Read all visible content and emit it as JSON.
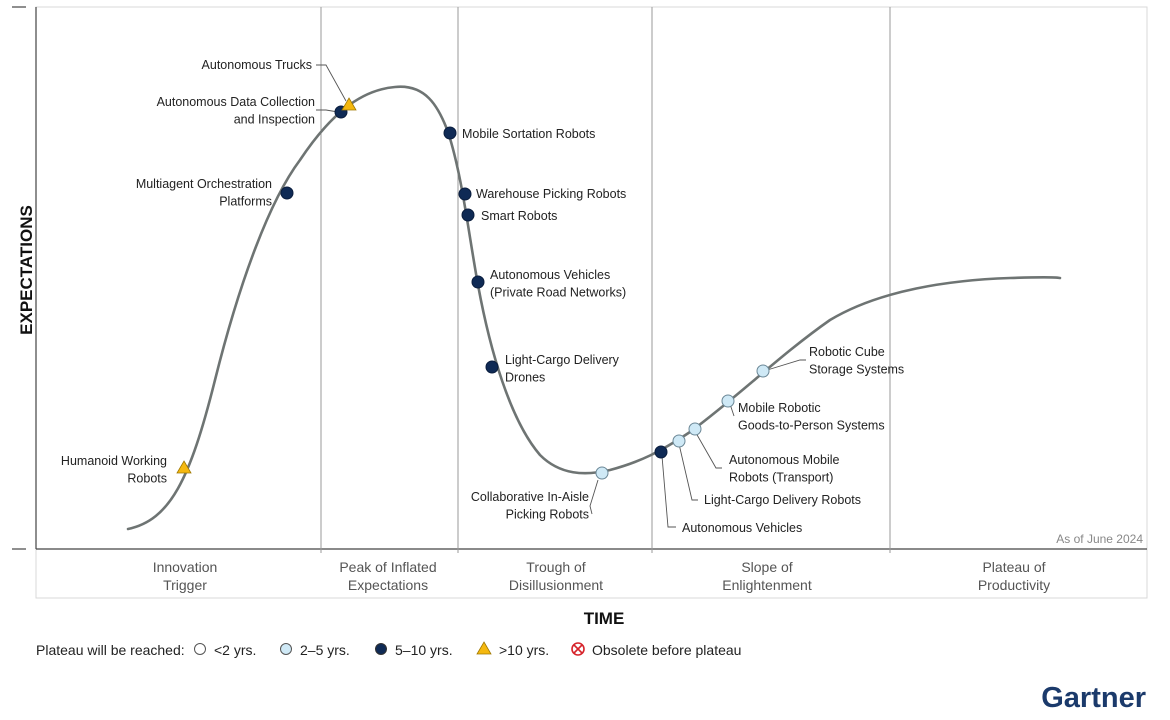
{
  "chart_data": {
    "type": "scatter",
    "chart_kind": "hype-cycle",
    "xlabel": "TIME",
    "ylabel": "EXPECTATIONS",
    "as_of": "As of June 2024",
    "phases": [
      {
        "line1": "Innovation",
        "line2": "Trigger"
      },
      {
        "line1": "Peak of Inflated",
        "line2": "Expectations"
      },
      {
        "line1": "Trough of",
        "line2": "Disillusionment"
      },
      {
        "line1": "Slope of",
        "line2": "Enlightenment"
      },
      {
        "line1": "Plateau of",
        "line2": "Productivity"
      }
    ],
    "legend": {
      "title": "Plateau will be reached:",
      "items": [
        {
          "key": "lt2",
          "label": "<2 yrs."
        },
        {
          "key": "y2to5",
          "label": "2–5 yrs."
        },
        {
          "key": "y5to10",
          "label": "5–10 yrs."
        },
        {
          "key": "gt10",
          "label": ">10 yrs."
        },
        {
          "key": "obsolete",
          "label": "Obsolete before plateau"
        }
      ]
    },
    "colors": {
      "curve": "#6e7473",
      "lt2": "#ffffff",
      "y2to5": "#cfe9f6",
      "y5to10": "#0f2a55",
      "gt10": "#f5b80f",
      "obsolete": "#d6242b",
      "divider": "#9a9a9a"
    },
    "technologies": [
      {
        "name": "Humanoid Working Robots",
        "lines": [
          "Humanoid Working",
          "Robots"
        ],
        "phase": "Innovation Trigger",
        "plateau": "gt10"
      },
      {
        "name": "Multiagent Orchestration Platforms",
        "lines": [
          "Multiagent Orchestration",
          "Platforms"
        ],
        "phase": "Innovation Trigger",
        "plateau": "y5to10"
      },
      {
        "name": "Autonomous Data Collection and Inspection",
        "lines": [
          "Autonomous Data Collection",
          "and Inspection"
        ],
        "phase": "Peak of Inflated Expectations",
        "plateau": "y5to10"
      },
      {
        "name": "Autonomous Trucks",
        "lines": [
          "Autonomous Trucks"
        ],
        "phase": "Peak of Inflated Expectations",
        "plateau": "gt10"
      },
      {
        "name": "Mobile Sortation Robots",
        "lines": [
          "Mobile Sortation Robots"
        ],
        "phase": "Peak of Inflated Expectations",
        "plateau": "y5to10"
      },
      {
        "name": "Warehouse Picking Robots",
        "lines": [
          "Warehouse Picking Robots"
        ],
        "phase": "Trough of Disillusionment",
        "plateau": "y5to10"
      },
      {
        "name": "Smart Robots",
        "lines": [
          "Smart Robots"
        ],
        "phase": "Trough of Disillusionment",
        "plateau": "y5to10"
      },
      {
        "name": "Autonomous Vehicles (Private Road Networks)",
        "lines": [
          "Autonomous Vehicles",
          "(Private Road Networks)"
        ],
        "phase": "Trough of Disillusionment",
        "plateau": "y5to10"
      },
      {
        "name": "Light-Cargo Delivery Drones",
        "lines": [
          "Light-Cargo Delivery",
          "Drones"
        ],
        "phase": "Trough of Disillusionment",
        "plateau": "y5to10"
      },
      {
        "name": "Collaborative In-Aisle Picking Robots",
        "lines": [
          "Collaborative In-Aisle",
          "Picking Robots"
        ],
        "phase": "Trough of Disillusionment",
        "plateau": "y2to5"
      },
      {
        "name": "Autonomous Vehicles",
        "lines": [
          "Autonomous Vehicles"
        ],
        "phase": "Slope of Enlightenment",
        "plateau": "y5to10"
      },
      {
        "name": "Light-Cargo Delivery Robots",
        "lines": [
          "Light-Cargo Delivery Robots"
        ],
        "phase": "Slope of Enlightenment",
        "plateau": "y2to5"
      },
      {
        "name": "Autonomous Mobile Robots (Transport)",
        "lines": [
          "Autonomous Mobile",
          "Robots (Transport)"
        ],
        "phase": "Slope of Enlightenment",
        "plateau": "y2to5"
      },
      {
        "name": "Mobile Robotic Goods-to-Person Systems",
        "lines": [
          "Mobile Robotic",
          "Goods-to-Person Systems"
        ],
        "phase": "Slope of Enlightenment",
        "plateau": "y2to5"
      },
      {
        "name": "Robotic Cube Storage Systems",
        "lines": [
          "Robotic Cube",
          "Storage Systems"
        ],
        "phase": "Slope of Enlightenment",
        "plateau": "y2to5"
      }
    ]
  },
  "brand": {
    "name": "Gartner"
  }
}
